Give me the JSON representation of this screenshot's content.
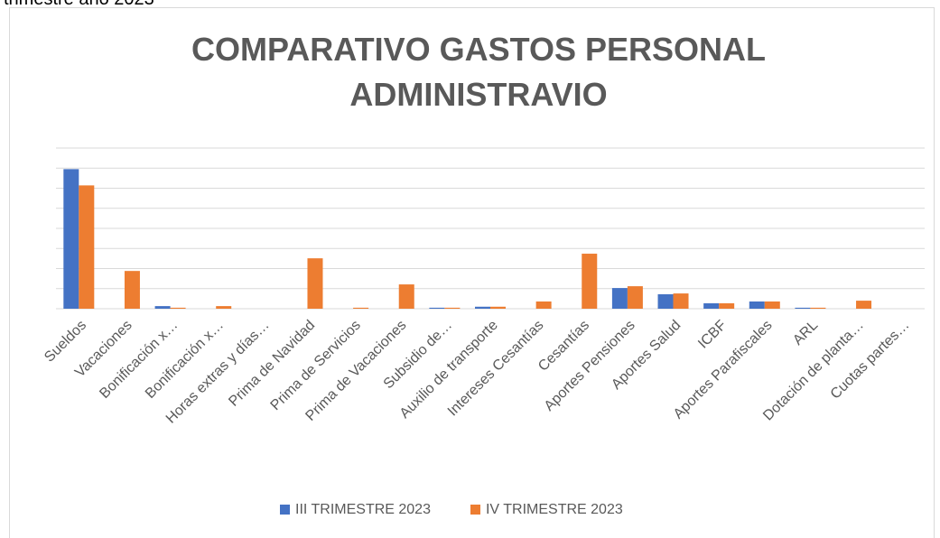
{
  "caption": "trimestre año 2023",
  "chart_data": {
    "type": "bar",
    "title": "COMPARATIVO GASTOS PERSONAL ADMINISTRAVIO",
    "categories": [
      "Sueldos",
      "Vacaciones",
      "Bonificación x…",
      "Bonificación x…",
      "Horas extras y días…",
      "Prima de Navidad",
      "Prima de Servicios",
      "Prima de Vacaciones",
      "Subsidio de…",
      "Auxilio de transporte",
      "Intereses Cesantías",
      "Cesantías",
      "Aportes Pensiones",
      "Aportes Salud",
      "ICBF",
      "Aportes Parafiscales",
      "ARL",
      "Dotación de planta…",
      "Cuotas partes…"
    ],
    "series": [
      {
        "name": "III TRIMESTRE 2023",
        "color": "#4472c4",
        "values": [
          6.95,
          0,
          0.13,
          0,
          0,
          0,
          0,
          0,
          0.05,
          0.1,
          0,
          0,
          1.03,
          0.72,
          0.27,
          0.36,
          0.05,
          0,
          0
        ]
      },
      {
        "name": "IV TRIMESTRE 2023",
        "color": "#ed7d31",
        "values": [
          6.14,
          1.88,
          0.05,
          0.13,
          0,
          2.51,
          0.05,
          1.21,
          0.05,
          0.1,
          0.36,
          2.74,
          1.12,
          0.76,
          0.27,
          0.36,
          0.05,
          0.4,
          0
        ]
      }
    ],
    "ylim": [
      0,
      8
    ],
    "yticks": [
      0,
      1,
      2,
      3,
      4,
      5,
      6,
      7,
      8
    ],
    "grid": true,
    "legend": "bottom"
  }
}
